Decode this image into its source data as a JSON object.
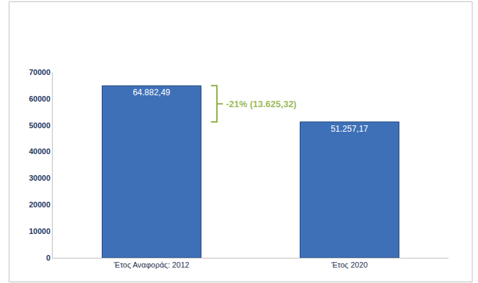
{
  "chart_data": {
    "type": "bar",
    "categories": [
      "Έτος Αναφοράς: 2012",
      "Έτος 2020"
    ],
    "values": [
      64882.49,
      51257.17
    ],
    "value_labels": [
      "64.882,49",
      "51.257,17"
    ],
    "data_labels": true,
    "color": "#3e70b8",
    "ylim": [
      0,
      70000
    ],
    "yticks": [
      0,
      10000,
      20000,
      30000,
      40000,
      50000,
      60000,
      70000
    ],
    "grid": false,
    "annotation": "-21% (13.625,32)"
  }
}
